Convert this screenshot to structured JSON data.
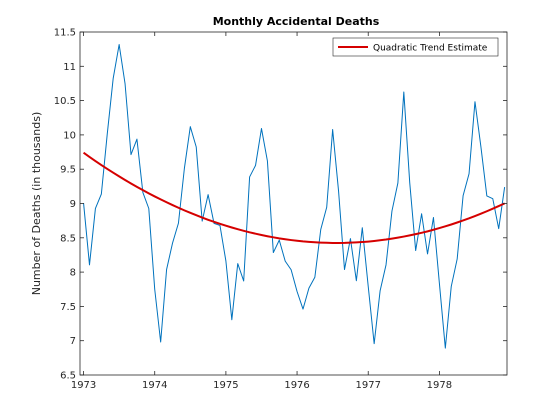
{
  "chart_data": {
    "type": "line",
    "title": "Monthly Accidental Deaths",
    "xlabel": "",
    "ylabel": "Number of Deaths (in thousands)",
    "xlim": [
      1972.95,
      1978.95
    ],
    "ylim": [
      6.5,
      11.5
    ],
    "x_ticks": [
      {
        "label": "1973",
        "value": 1973
      },
      {
        "label": "1974",
        "value": 1974
      },
      {
        "label": "1975",
        "value": 1975
      },
      {
        "label": "1976",
        "value": 1976
      },
      {
        "label": "1977",
        "value": 1977
      },
      {
        "label": "1978",
        "value": 1978
      }
    ],
    "y_ticks": [
      {
        "label": "6.5",
        "value": 6.5
      },
      {
        "label": "7",
        "value": 7
      },
      {
        "label": "7.5",
        "value": 7.5
      },
      {
        "label": "8",
        "value": 8
      },
      {
        "label": "8.5",
        "value": 8.5
      },
      {
        "label": "9",
        "value": 9
      },
      {
        "label": "9.5",
        "value": 9.5
      },
      {
        "label": "10",
        "value": 10
      },
      {
        "label": "10.5",
        "value": 10.5
      },
      {
        "label": "11",
        "value": 11
      },
      {
        "label": "11.5",
        "value": 11.5
      }
    ],
    "grid": false,
    "legend_position": "top-right",
    "series": [
      {
        "color": "#0072bd",
        "x_start": 1973,
        "x_step": 0.08333333,
        "values": [
          9.007,
          8.106,
          8.928,
          9.137,
          10.017,
          10.826,
          11.317,
          10.744,
          9.713,
          9.938,
          9.161,
          8.927,
          7.75,
          6.981,
          8.038,
          8.422,
          8.714,
          9.512,
          10.12,
          9.823,
          8.743,
          9.129,
          8.71,
          8.68,
          8.162,
          7.306,
          8.124,
          7.87,
          9.387,
          9.556,
          10.093,
          9.62,
          8.285,
          8.466,
          8.16,
          8.034,
          7.717,
          7.461,
          7.767,
          7.925,
          8.623,
          8.945,
          10.078,
          9.179,
          8.037,
          8.488,
          7.874,
          8.647,
          7.792,
          6.957,
          7.726,
          8.106,
          8.89,
          9.299,
          10.625,
          9.302,
          8.314,
          8.85,
          8.265,
          8.796,
          7.836,
          6.892,
          7.791,
          8.192,
          9.115,
          9.434,
          10.484,
          9.827,
          9.11,
          9.07,
          8.633,
          9.24
        ]
      },
      {
        "name": "Quadratic Trend Estimate",
        "color": "#d50000",
        "x_start": 1973,
        "x_step": 0.08333333,
        "values": [
          9.74,
          9.679,
          9.619,
          9.561,
          9.504,
          9.449,
          9.395,
          9.343,
          9.292,
          9.243,
          9.195,
          9.148,
          9.103,
          9.06,
          9.018,
          8.977,
          8.938,
          8.9,
          8.864,
          8.829,
          8.795,
          8.763,
          8.733,
          8.704,
          8.676,
          8.65,
          8.625,
          8.602,
          8.58,
          8.56,
          8.541,
          8.523,
          8.507,
          8.492,
          8.479,
          8.467,
          8.457,
          8.448,
          8.441,
          8.435,
          8.43,
          8.427,
          8.425,
          8.425,
          8.426,
          8.429,
          8.433,
          8.438,
          8.445,
          8.454,
          8.464,
          8.475,
          8.488,
          8.502,
          8.518,
          8.535,
          8.553,
          8.573,
          8.594,
          8.617,
          8.642,
          8.667,
          8.694,
          8.723,
          8.753,
          8.784,
          8.817,
          8.851,
          8.887,
          8.924,
          8.963,
          9.002
        ]
      }
    ]
  }
}
